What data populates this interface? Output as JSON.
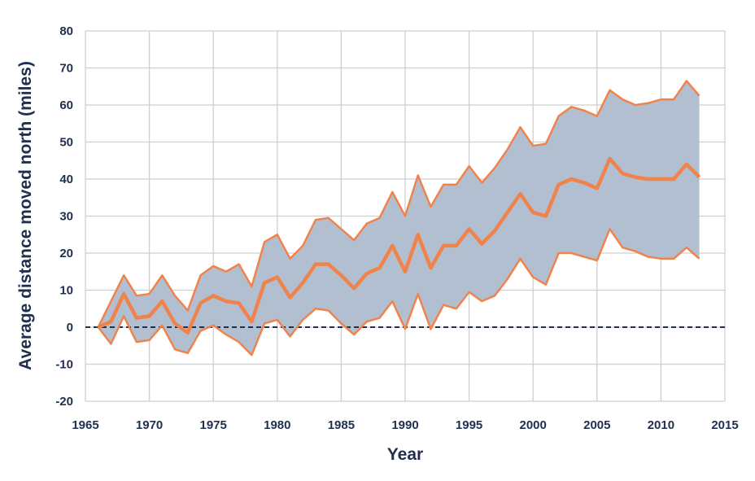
{
  "chart_data": {
    "type": "line",
    "title": "",
    "xlabel": "Year",
    "ylabel": "Average distance moved north (miles)",
    "xlim": [
      1965,
      2015
    ],
    "ylim": [
      -20,
      80
    ],
    "xticks": [
      1965,
      1970,
      1975,
      1980,
      1985,
      1990,
      1995,
      2000,
      2005,
      2010,
      2015
    ],
    "yticks": [
      -20,
      -10,
      0,
      10,
      20,
      30,
      40,
      50,
      60,
      70,
      80
    ],
    "grid": true,
    "reference_line": {
      "y": 0,
      "style": "dashed"
    },
    "x": [
      1966,
      1967,
      1968,
      1969,
      1970,
      1971,
      1972,
      1973,
      1974,
      1975,
      1976,
      1977,
      1978,
      1979,
      1980,
      1981,
      1982,
      1983,
      1984,
      1985,
      1986,
      1987,
      1988,
      1989,
      1990,
      1991,
      1992,
      1993,
      1994,
      1995,
      1996,
      1997,
      1998,
      1999,
      2000,
      2001,
      2002,
      2003,
      2004,
      2005,
      2006,
      2007,
      2008,
      2009,
      2010,
      2011,
      2012,
      2013
    ],
    "series": [
      {
        "role": "upper",
        "values": [
          0,
          7,
          14,
          8.5,
          9,
          14,
          8.5,
          4.5,
          14,
          16.5,
          15,
          17,
          11,
          23,
          25,
          18.5,
          22,
          29,
          29.5,
          26.5,
          23.5,
          28,
          29.5,
          36.5,
          30,
          41,
          32.5,
          38.5,
          38.5,
          43.5,
          39,
          43,
          48,
          54,
          49,
          49.5,
          57,
          59.5,
          58.5,
          57,
          64,
          61.5,
          60,
          60.5,
          61.5,
          61.5,
          66.5,
          62.5
        ]
      },
      {
        "role": "central",
        "values": [
          0,
          1.5,
          9,
          2.5,
          3,
          7,
          1,
          -1.5,
          6.5,
          8.5,
          7,
          6.5,
          1.5,
          12,
          13.5,
          8,
          12,
          17,
          17,
          14,
          10.5,
          14.5,
          16,
          22,
          15,
          25,
          16,
          22,
          22,
          26.5,
          22.5,
          26,
          31,
          36,
          31,
          30,
          38.5,
          40,
          39,
          37.5,
          45.5,
          41.5,
          40.5,
          40,
          40,
          40,
          44,
          40.5
        ]
      },
      {
        "role": "lower",
        "values": [
          0,
          -4.5,
          3,
          -4,
          -3.5,
          0.5,
          -6,
          -7,
          -1,
          0.5,
          -2,
          -4,
          -7.5,
          1,
          2,
          -2.5,
          2,
          5,
          4.5,
          1,
          -2,
          1.5,
          2.5,
          7,
          -0.5,
          9,
          -0.5,
          6,
          5,
          9.5,
          7,
          8.5,
          13,
          18.5,
          13.5,
          11.5,
          20,
          20,
          19,
          18,
          26.5,
          21.5,
          20.5,
          19,
          18.5,
          18.5,
          21.5,
          18.5
        ]
      }
    ],
    "colors": {
      "band": "#b2bfd0",
      "line": "#f0834c",
      "grid": "#cfcfcf",
      "text": "#1f2f4d",
      "zero_line": "#1f2f4d"
    }
  }
}
